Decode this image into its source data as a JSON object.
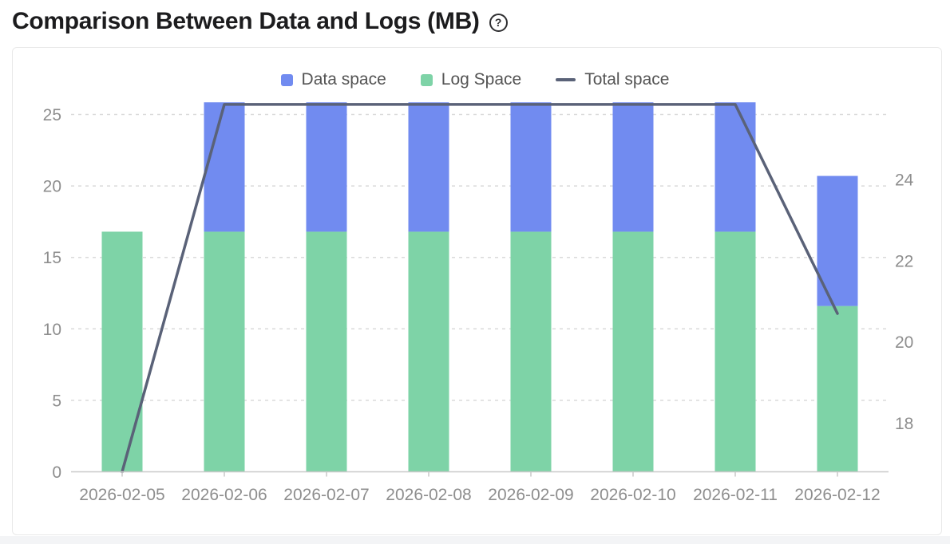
{
  "page": {
    "title": "Comparison Between Data and Logs (MB)",
    "help_glyph": "?"
  },
  "colors": {
    "data_space": "#718bf0",
    "log_space": "#7ed3a7",
    "total_space": "#5a6278",
    "grid_line": "#dadada",
    "axis_line": "#c9c9c9",
    "tick_label": "#8e8e8e",
    "legend_text": "#545454",
    "title_text": "#1c1c1e",
    "card_border": "#e9e9e9"
  },
  "chart_data": {
    "type": "bar",
    "stacked": true,
    "title": "Comparison Between Data and Logs (MB)",
    "categories": [
      "2026-02-05",
      "2026-02-06",
      "2026-02-07",
      "2026-02-08",
      "2026-02-09",
      "2026-02-10",
      "2026-02-11",
      "2026-02-12"
    ],
    "series": [
      {
        "name": "Data space",
        "type": "bar",
        "axis": "left",
        "color": "#718bf0",
        "values": [
          0,
          9.05,
          9.05,
          9.05,
          9.05,
          9.05,
          9.05,
          9.1
        ]
      },
      {
        "name": "Log Space",
        "type": "bar",
        "axis": "left",
        "color": "#7ed3a7",
        "values": [
          16.8,
          16.8,
          16.8,
          16.8,
          16.8,
          16.8,
          16.8,
          11.6
        ]
      },
      {
        "name": "Total space",
        "type": "line",
        "axis": "right",
        "color": "#5a6278",
        "values": [
          16.8,
          25.85,
          25.85,
          25.85,
          25.85,
          25.85,
          25.85,
          20.7
        ]
      }
    ],
    "left_axis": {
      "min": 0,
      "ticks": [
        0,
        5,
        10,
        15,
        20,
        25
      ]
    },
    "right_axis": {
      "min": 16.8,
      "ticks": [
        18,
        20,
        22,
        24
      ]
    },
    "legend_position": "top-center",
    "grid": "horizontal-dotted",
    "unit": "MB"
  }
}
